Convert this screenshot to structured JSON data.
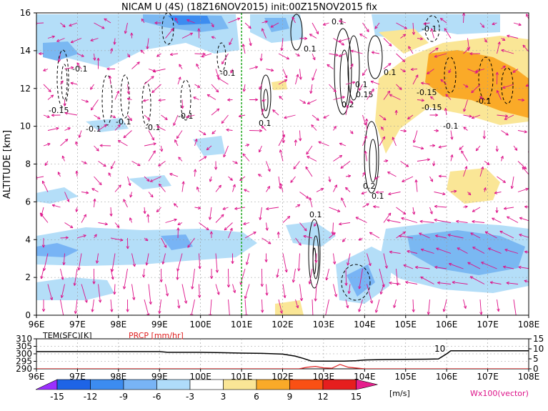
{
  "title": "NICAM U (4S) (18Z16NOV2015) init:00Z15NOV2015 fix",
  "chart_data": [
    {
      "type": "heatmap",
      "name_printed": "",
      "xlabel": "",
      "ylabel": "ALTITUDE [km]",
      "x_ticks": [
        "96E",
        "97E",
        "98E",
        "99E",
        "100E",
        "101E",
        "102E",
        "103E",
        "104E",
        "105E",
        "106E",
        "107E",
        "108E"
      ],
      "x_range": [
        96,
        108
      ],
      "y_ticks": [
        "0",
        "2",
        "4",
        "6",
        "8",
        "10",
        "12",
        "14",
        "16"
      ],
      "y_range": [
        0,
        16
      ],
      "grid": true,
      "reference_line_x": 101,
      "reference_line_color": "#22aa22",
      "colorbar": {
        "labels": [
          "-15",
          "-12",
          "-9",
          "-6",
          "-3",
          "3",
          "6",
          "9",
          "12",
          "15"
        ],
        "unit": "[m/s]",
        "colors": [
          "#9b30ff",
          "#1e64e6",
          "#3c8cf0",
          "#78b4f5",
          "#afdcfa",
          "#ffffff",
          "#fae696",
          "#faaa28",
          "#fa5014",
          "#e61e1e",
          "#aa0014"
        ],
        "cold_arrow": "#9b30ff",
        "warm_arrow": "#e61e8c"
      },
      "contour_labels": [
        "0.1",
        "-0.1",
        "-0.15",
        "0.15",
        "0.2",
        "0.1",
        "-0.1",
        "-0.15"
      ],
      "vector_legend": "Wx100(vector)",
      "vector_color": "#dd1188"
    },
    {
      "type": "line",
      "series_labels": {
        "tem": "TEM(SFC)[K]",
        "prcp": "PRCP [mm/hr]"
      },
      "x_ticks": [
        "96E",
        "97E",
        "98E",
        "99E",
        "100E",
        "101E",
        "102E",
        "103E",
        "104E",
        "105E",
        "106E",
        "107E",
        "108E"
      ],
      "x_range": [
        96,
        108
      ],
      "y_left_ticks": [
        "290",
        "295",
        "300",
        "305",
        "310"
      ],
      "y_left_range": [
        290,
        310
      ],
      "y_right_ticks": [
        "0",
        "5",
        "10",
        "15"
      ],
      "y_right_range": [
        0,
        15
      ],
      "annotation": "10",
      "tem_color": "#000000",
      "prcp_color": "#e02020",
      "tem": {
        "x": [
          96,
          97,
          98,
          99,
          99.2,
          100,
          100.5,
          101,
          101.5,
          102,
          102.3,
          102.5,
          102.7,
          103,
          103.5,
          103.8,
          104,
          104.5,
          105,
          105.5,
          105.8,
          106,
          106.1,
          107,
          108
        ],
        "y": [
          301.5,
          301.5,
          301.5,
          301.5,
          301,
          301,
          300.8,
          300.5,
          300.3,
          299.8,
          298.5,
          297,
          295.2,
          295.1,
          295.1,
          295.4,
          295.9,
          296.2,
          296.3,
          296.4,
          296.6,
          300,
          302,
          302,
          302
        ]
      },
      "prcp": {
        "x": [
          96,
          102.4,
          102.6,
          102.8,
          103,
          103.2,
          103.4,
          103.6,
          103.8,
          104,
          108
        ],
        "y": [
          0,
          0,
          0.8,
          1.2,
          0.5,
          0.3,
          2.2,
          0.8,
          0.4,
          0,
          0
        ]
      }
    }
  ]
}
